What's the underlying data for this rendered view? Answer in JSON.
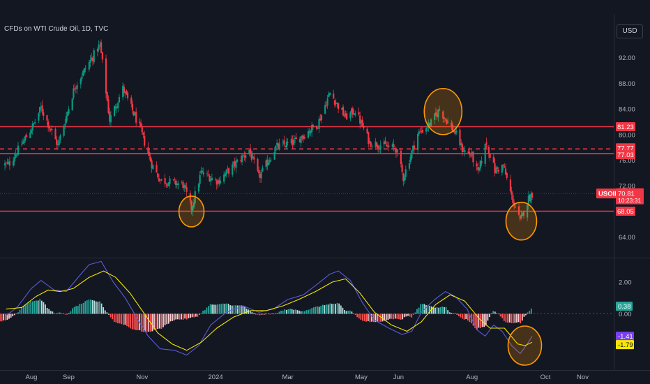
{
  "header": {
    "title": "CFDs on WTI Crude Oil, 1D, TVC",
    "currency": "USD"
  },
  "symbol": "USOIL",
  "countdown": "10:23:31",
  "chart_data": [
    {
      "type": "candlestick",
      "title": "CFDs on WTI Crude Oil, 1D, TVC",
      "y_ticks": [
        "92.00",
        "88.00",
        "84.00",
        "80.00",
        "76.00",
        "72.00",
        "64.00"
      ],
      "ylim": [
        61.5,
        97.0
      ],
      "x_ticks": [
        "Aug",
        "Sep",
        "Nov",
        "2024",
        "Mar",
        "May",
        "Jun",
        "Aug",
        "Oct",
        "Nov"
      ],
      "close_path": [
        [
          "2023-07-13",
          75.3
        ],
        [
          "2023-07-24",
          78.5
        ],
        [
          "2023-08-03",
          81.6
        ],
        [
          "2023-08-09",
          84.2
        ],
        [
          "2023-08-23",
          78.3
        ],
        [
          "2023-09-06",
          87.5
        ],
        [
          "2023-09-18",
          91.2
        ],
        [
          "2023-09-27",
          94.1
        ],
        [
          "2023-10-05",
          82.3
        ],
        [
          "2023-10-16",
          87.2
        ],
        [
          "2023-10-30",
          81.1
        ],
        [
          "2023-11-09",
          75.4
        ],
        [
          "2023-11-16",
          72.9
        ],
        [
          "2023-12-05",
          72.2
        ],
        [
          "2023-12-12",
          68.5
        ],
        [
          "2023-12-20",
          74.1
        ],
        [
          "2024-01-03",
          72.7
        ],
        [
          "2024-01-29",
          77.6
        ],
        [
          "2024-02-06",
          73.3
        ],
        [
          "2024-02-20",
          78.0
        ],
        [
          "2024-03-07",
          78.9
        ],
        [
          "2024-03-26",
          81.7
        ],
        [
          "2024-04-05",
          86.5
        ],
        [
          "2024-04-18",
          82.7
        ],
        [
          "2024-04-26",
          83.8
        ],
        [
          "2024-05-08",
          78.8
        ],
        [
          "2024-05-30",
          77.8
        ],
        [
          "2024-06-05",
          73.3
        ],
        [
          "2024-06-17",
          80.1
        ],
        [
          "2024-06-28",
          81.8
        ],
        [
          "2024-07-05",
          83.9
        ],
        [
          "2024-07-19",
          80.0
        ],
        [
          "2024-07-24",
          77.7
        ],
        [
          "2024-08-01",
          76.7
        ],
        [
          "2024-08-06",
          73.9
        ],
        [
          "2024-08-13",
          78.8
        ],
        [
          "2024-08-20",
          74.4
        ],
        [
          "2024-08-27",
          75.1
        ],
        [
          "2024-09-03",
          70.3
        ],
        [
          "2024-09-10",
          66.4
        ],
        [
          "2024-09-17",
          70.0
        ],
        [
          "2024-09-20",
          70.81
        ]
      ],
      "horizontal_lines": [
        {
          "value": 81.23,
          "style": "solid",
          "color": "#f23645"
        },
        {
          "value": 77.77,
          "style": "dashed",
          "color": "#f23645"
        },
        {
          "value": 77.03,
          "style": "solid",
          "color": "#f23645"
        },
        {
          "value": 68.05,
          "style": "solid",
          "color": "#f23645"
        }
      ],
      "level_labels": [
        "81.23",
        "77.77",
        "77.03",
        "68.05"
      ],
      "last_price": "70.81",
      "highlights": [
        {
          "date": "2023-12-12",
          "price": 68.0
        },
        {
          "date": "2024-07-08",
          "price": 83.6
        },
        {
          "date": "2024-09-11",
          "price": 66.5
        }
      ]
    },
    {
      "type": "macd",
      "y_ticks": [
        "2.00",
        "0.00"
      ],
      "ylim": [
        -3.4,
        3.6
      ],
      "macd_label": "-1.41",
      "signal_label": "-1.79",
      "hist_label": "0.38",
      "macd_color": "#5b5bd6",
      "signal_color": "#f7e600",
      "macd": [
        [
          "2023-07-11",
          -0.1
        ],
        [
          "2023-07-20",
          0.4
        ],
        [
          "2023-08-01",
          1.6
        ],
        [
          "2023-08-09",
          2.1
        ],
        [
          "2023-08-20",
          1.5
        ],
        [
          "2023-08-30",
          1.4
        ],
        [
          "2023-09-10",
          2.4
        ],
        [
          "2023-09-18",
          3.1
        ],
        [
          "2023-09-28",
          3.3
        ],
        [
          "2023-10-08",
          2.0
        ],
        [
          "2023-10-18",
          1.0
        ],
        [
          "2023-10-28",
          -0.3
        ],
        [
          "2023-11-06",
          -1.4
        ],
        [
          "2023-11-16",
          -2.2
        ],
        [
          "2023-11-28",
          -2.3
        ],
        [
          "2023-12-08",
          -2.6
        ],
        [
          "2023-12-18",
          -2.0
        ],
        [
          "2023-12-28",
          -0.7
        ],
        [
          "2024-01-10",
          0.1
        ],
        [
          "2024-01-24",
          0.5
        ],
        [
          "2024-02-06",
          0.1
        ],
        [
          "2024-02-18",
          0.3
        ],
        [
          "2024-03-01",
          0.9
        ],
        [
          "2024-03-14",
          1.2
        ],
        [
          "2024-03-26",
          1.9
        ],
        [
          "2024-04-05",
          2.5
        ],
        [
          "2024-04-12",
          2.7
        ],
        [
          "2024-04-22",
          2.1
        ],
        [
          "2024-05-02",
          0.7
        ],
        [
          "2024-05-12",
          -0.4
        ],
        [
          "2024-05-24",
          -0.9
        ],
        [
          "2024-06-04",
          -1.3
        ],
        [
          "2024-06-12",
          -1.1
        ],
        [
          "2024-06-20",
          0.1
        ],
        [
          "2024-07-01",
          0.9
        ],
        [
          "2024-07-10",
          1.4
        ],
        [
          "2024-07-18",
          1.1
        ],
        [
          "2024-07-28",
          0.3
        ],
        [
          "2024-08-05",
          -1.0
        ],
        [
          "2024-08-12",
          -1.4
        ],
        [
          "2024-08-19",
          -0.7
        ],
        [
          "2024-08-26",
          -1.1
        ],
        [
          "2024-09-03",
          -2.0
        ],
        [
          "2024-09-10",
          -2.5
        ],
        [
          "2024-09-16",
          -1.9
        ],
        [
          "2024-09-20",
          -1.41
        ]
      ],
      "signal": [
        [
          "2023-07-11",
          0.3
        ],
        [
          "2023-07-24",
          0.4
        ],
        [
          "2023-08-05",
          1.1
        ],
        [
          "2023-08-15",
          1.5
        ],
        [
          "2023-08-25",
          1.4
        ],
        [
          "2023-09-05",
          1.6
        ],
        [
          "2023-09-18",
          2.3
        ],
        [
          "2023-09-30",
          2.7
        ],
        [
          "2023-10-10",
          2.3
        ],
        [
          "2023-10-22",
          1.3
        ],
        [
          "2023-11-02",
          0.1
        ],
        [
          "2023-11-14",
          -1.2
        ],
        [
          "2023-11-26",
          -1.9
        ],
        [
          "2023-12-08",
          -2.3
        ],
        [
          "2023-12-20",
          -1.8
        ],
        [
          "2024-01-02",
          -0.9
        ],
        [
          "2024-01-16",
          -0.2
        ],
        [
          "2024-01-30",
          0.2
        ],
        [
          "2024-02-12",
          0.2
        ],
        [
          "2024-02-26",
          0.5
        ],
        [
          "2024-03-10",
          0.9
        ],
        [
          "2024-03-24",
          1.4
        ],
        [
          "2024-04-07",
          2.0
        ],
        [
          "2024-04-18",
          2.2
        ],
        [
          "2024-04-30",
          1.3
        ],
        [
          "2024-05-12",
          0.1
        ],
        [
          "2024-05-26",
          -0.7
        ],
        [
          "2024-06-08",
          -1.1
        ],
        [
          "2024-06-20",
          -0.5
        ],
        [
          "2024-07-02",
          0.6
        ],
        [
          "2024-07-14",
          1.2
        ],
        [
          "2024-07-26",
          0.8
        ],
        [
          "2024-08-07",
          -0.3
        ],
        [
          "2024-08-16",
          -0.9
        ],
        [
          "2024-08-28",
          -0.9
        ],
        [
          "2024-09-08",
          -1.9
        ],
        [
          "2024-09-14",
          -2.0
        ],
        [
          "2024-09-20",
          -1.79
        ]
      ],
      "highlight": {
        "date": "2024-09-11",
        "value": -2.0
      }
    }
  ]
}
